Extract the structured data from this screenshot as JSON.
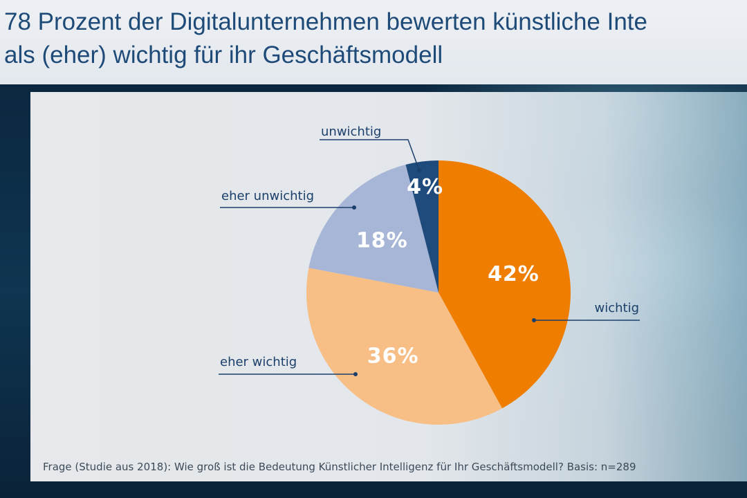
{
  "header": {
    "title_line1": "78 Prozent der Digitalunternehmen bewerten künstliche Inte",
    "title_line2": "als (eher) wichtig für ihr Geschäftsmodell"
  },
  "chart_data": {
    "type": "pie",
    "slices": [
      {
        "label": "wichtig",
        "value": 42,
        "display": "42%",
        "color": "#ee7d00"
      },
      {
        "label": "eher wichtig",
        "value": 36,
        "display": "36%",
        "color": "#f7be86"
      },
      {
        "label": "eher unwichtig",
        "value": 18,
        "display": "18%",
        "color": "#a7b6d6"
      },
      {
        "label": "unwichtig",
        "value": 4,
        "display": "4%",
        "color": "#1f4a7c"
      }
    ],
    "start_angle_deg": 0,
    "direction": "clockwise",
    "label_color": "#1b3f6b",
    "value_label_color": "#ffffff"
  },
  "footnote": "Frage (Studie aus 2018): Wie groß ist die Bedeutung Künstlicher Intelligenz für Ihr Geschäftsmodell? Basis: n=289"
}
